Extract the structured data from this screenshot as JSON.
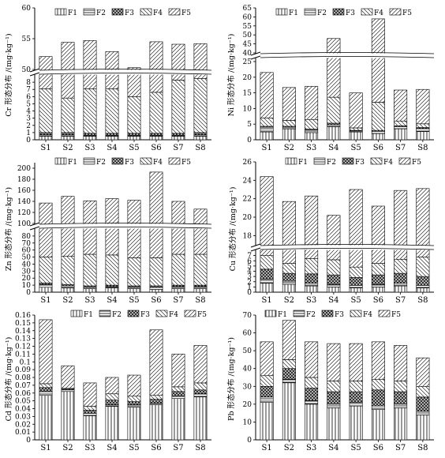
{
  "legend_labels": [
    "F1",
    "F2",
    "F3",
    "F4",
    "F5"
  ],
  "chart_data": [
    {
      "type": "bar",
      "stacked": true,
      "element": "Cr",
      "ylabel": "Cr 形态分布 /(mg·kg⁻¹)",
      "categories": [
        "S1",
        "S2",
        "S3",
        "S4",
        "S5",
        "S6",
        "S7",
        "S8"
      ],
      "axis_break": [
        9,
        50
      ],
      "yticks": [
        0,
        1,
        2,
        3,
        4,
        5,
        6,
        7,
        8,
        50,
        55,
        60
      ],
      "ylim": [
        0,
        60
      ],
      "grid": false,
      "legend": "top",
      "series": [
        {
          "name": "F1",
          "values": [
            0.5,
            0.5,
            0.5,
            0.5,
            0.5,
            0.5,
            0.5,
            0.5
          ]
        },
        {
          "name": "F2",
          "values": [
            0.2,
            0.2,
            0.1,
            0.1,
            0.1,
            0.1,
            0.1,
            0.2
          ]
        },
        {
          "name": "F3",
          "values": [
            0.3,
            0.3,
            0.3,
            0.3,
            0.3,
            0.3,
            0.3,
            0.3
          ]
        },
        {
          "name": "F4",
          "values": [
            6.1,
            4.8,
            6.2,
            6.2,
            5.1,
            5.7,
            7.4,
            7.5
          ]
        },
        {
          "name": "F5",
          "values": [
            45.0,
            48.6,
            47.6,
            45.8,
            44.3,
            47.9,
            45.8,
            45.7
          ]
        }
      ]
    },
    {
      "type": "bar",
      "stacked": true,
      "element": "Ni",
      "ylabel": "Ni 形态分布 /(mg·kg⁻¹)",
      "categories": [
        "S1",
        "S2",
        "S3",
        "S4",
        "S5",
        "S6",
        "S7",
        "S8"
      ],
      "axis_break": [
        26,
        40
      ],
      "yticks": [
        0,
        5,
        10,
        15,
        20,
        25,
        40,
        45,
        50,
        55,
        60,
        65
      ],
      "ylim": [
        0,
        65
      ],
      "grid": false,
      "legend": "top",
      "series": [
        {
          "name": "F1",
          "values": [
            2.5,
            3.5,
            2.3,
            4.2,
            2.5,
            2.0,
            3.5,
            2.6
          ]
        },
        {
          "name": "F2",
          "values": [
            1.5,
            0.5,
            0.9,
            0.6,
            0.3,
            0.7,
            0.7,
            1.0
          ]
        },
        {
          "name": "F3",
          "values": [
            0.3,
            0.3,
            0.2,
            0.5,
            0.2,
            0.3,
            0.3,
            0.3
          ]
        },
        {
          "name": "F4",
          "values": [
            2.7,
            1.9,
            3.1,
            8.3,
            0.8,
            9.0,
            1.5,
            1.2
          ]
        },
        {
          "name": "F5",
          "values": [
            14.5,
            10.5,
            10.6,
            34.4,
            11.2,
            46.9,
            9.9,
            11.0
          ]
        }
      ]
    },
    {
      "type": "bar",
      "stacked": true,
      "element": "Zn",
      "ylabel": "Zn 形态分布 /(mg·kg⁻¹)",
      "categories": [
        "S1",
        "S2",
        "S3",
        "S4",
        "S5",
        "S6",
        "S7",
        "S8"
      ],
      "axis_break": [
        90,
        100
      ],
      "yticks": [
        0,
        10,
        20,
        30,
        40,
        50,
        60,
        70,
        80,
        100,
        120,
        140,
        160,
        180,
        200
      ],
      "ylim": [
        0,
        210
      ],
      "grid": false,
      "legend": "top",
      "series": [
        {
          "name": "F1",
          "values": [
            7,
            6,
            5,
            6,
            5,
            4,
            5,
            5
          ]
        },
        {
          "name": "F2",
          "values": [
            4,
            3,
            2,
            2,
            2,
            3,
            3,
            3
          ]
        },
        {
          "name": "F3",
          "values": [
            2,
            2,
            2,
            2,
            2,
            2,
            2,
            2
          ]
        },
        {
          "name": "F4",
          "values": [
            37,
            40,
            45,
            43,
            40,
            40,
            44,
            44
          ]
        },
        {
          "name": "F5",
          "values": [
            87,
            98,
            87,
            92,
            93,
            144,
            86,
            72
          ]
        }
      ]
    },
    {
      "type": "bar",
      "stacked": true,
      "element": "Cu",
      "ylabel": "Cu 形态分布 /(mg·kg⁻¹)",
      "categories": [
        "S1",
        "S2",
        "S3",
        "S4",
        "S5",
        "S6",
        "S7",
        "S8"
      ],
      "axis_break": [
        8,
        17
      ],
      "yticks": [
        0,
        1,
        2,
        3,
        4,
        5,
        6,
        7,
        18,
        20,
        22,
        24,
        26
      ],
      "ylim": [
        0,
        26
      ],
      "grid": false,
      "legend": "top",
      "series": [
        {
          "name": "F1",
          "values": [
            1.7,
            1.5,
            1.2,
            1.0,
            0.8,
            1.0,
            1.2,
            0.8
          ]
        },
        {
          "name": "F2",
          "values": [
            0.8,
            0.6,
            0.5,
            0.5,
            0.5,
            0.5,
            0.5,
            0.5
          ]
        },
        {
          "name": "F3",
          "values": [
            1.9,
            1.5,
            1.8,
            1.8,
            1.5,
            1.8,
            1.9,
            1.7
          ]
        },
        {
          "name": "F4",
          "values": [
            2.6,
            1.9,
            2.9,
            2.9,
            2.0,
            2.2,
            2.7,
            3.7
          ]
        },
        {
          "name": "F5",
          "values": [
            17.4,
            16.2,
            15.9,
            14.0,
            18.2,
            15.7,
            16.6,
            16.4
          ]
        }
      ]
    },
    {
      "type": "bar",
      "stacked": true,
      "element": "Cd",
      "ylabel": "Cd 形态分布 /(mg·kg⁻¹)",
      "categories": [
        "S1",
        "S2",
        "S3",
        "S4",
        "S5",
        "S6",
        "S7",
        "S8"
      ],
      "yticks": [
        0,
        0.01,
        0.02,
        0.03,
        0.04,
        0.05,
        0.06,
        0.07,
        0.08,
        0.09,
        0.1,
        0.11,
        0.12,
        0.13,
        0.14,
        0.15,
        0.16
      ],
      "ylim": [
        0,
        0.16
      ],
      "grid": false,
      "legend": "top",
      "series": [
        {
          "name": "F1",
          "values": [
            0.057,
            0.062,
            0.031,
            0.043,
            0.042,
            0.045,
            0.053,
            0.055
          ]
        },
        {
          "name": "F2",
          "values": [
            0.005,
            0.002,
            0.003,
            0.002,
            0.003,
            0.002,
            0.003,
            0.004
          ]
        },
        {
          "name": "F3",
          "values": [
            0.005,
            0.001,
            0.004,
            0.006,
            0.004,
            0.005,
            0.006,
            0.005
          ]
        },
        {
          "name": "F4",
          "values": [
            0.005,
            0.001,
            0.005,
            0.008,
            0.007,
            0.005,
            0.006,
            0.009
          ]
        },
        {
          "name": "F5",
          "values": [
            0.082,
            0.029,
            0.03,
            0.021,
            0.027,
            0.084,
            0.042,
            0.048
          ]
        }
      ]
    },
    {
      "type": "bar",
      "stacked": true,
      "element": "Pb",
      "ylabel": "Pb 形态分布 /(mg·kg⁻¹)",
      "categories": [
        "S1",
        "S2",
        "S3",
        "S4",
        "S5",
        "S6",
        "S7",
        "S8"
      ],
      "yticks": [
        0,
        10,
        20,
        30,
        40,
        50,
        60,
        70
      ],
      "ylim": [
        0,
        70
      ],
      "grid": false,
      "legend": "top",
      "series": [
        {
          "name": "F1",
          "values": [
            21,
            32,
            20,
            18,
            19,
            17,
            18,
            14
          ]
        },
        {
          "name": "F2",
          "values": [
            3,
            2,
            2,
            2,
            2,
            2,
            2,
            2
          ]
        },
        {
          "name": "F3",
          "values": [
            6,
            6,
            7,
            7,
            6,
            9,
            7,
            8
          ]
        },
        {
          "name": "F4",
          "values": [
            6,
            5,
            6,
            6,
            6,
            6,
            6,
            6
          ]
        },
        {
          "name": "F5",
          "values": [
            19,
            22,
            20,
            21,
            21,
            21,
            20,
            16
          ]
        }
      ]
    }
  ]
}
